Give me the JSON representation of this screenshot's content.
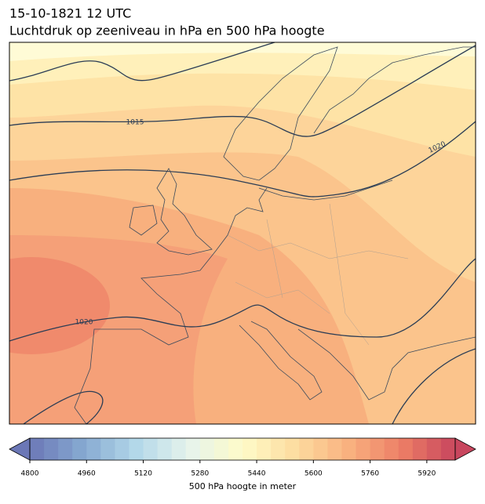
{
  "title": "15-10-1821 12 UTC",
  "subtitle": "Luchtdruk op zeeniveau in hPa en 500 hPa hoogte",
  "isobar_labels": [
    1015,
    1020,
    1020
  ],
  "colorbar": {
    "label": "500 hPa hoogte in meter",
    "lim": [
      4800,
      6000
    ],
    "ticks": [
      4800,
      4960,
      5120,
      5280,
      5440,
      5600,
      5760,
      5920
    ],
    "colors": [
      "#6b77b6",
      "#86a9d1",
      "#b3d8e9",
      "#e6f4ec",
      "#fefbc8",
      "#fddc9f",
      "#f9b17f",
      "#ec7e66",
      "#c8465e"
    ]
  }
}
